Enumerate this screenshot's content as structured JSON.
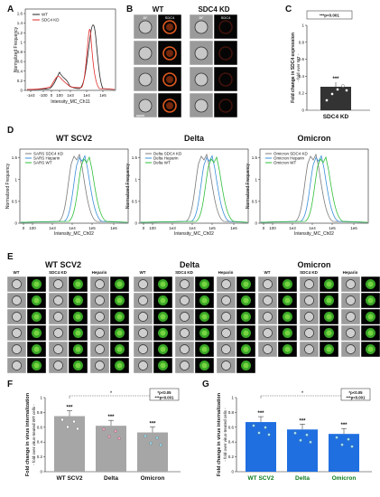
{
  "panels": {
    "A": {
      "label": "A",
      "legend": [
        "WT",
        "SDC4 KD"
      ],
      "ylabel": "Normalized Frequency",
      "xlabel": "Intensity_MC_Ch11",
      "yticks": [
        "0",
        "0.2",
        "0.4",
        "0.6",
        "0.8",
        "1",
        "1.2",
        "1.4",
        "1.6"
      ],
      "xticks": [
        "-1e3",
        "-100",
        "0",
        "100",
        "1e3",
        "1e4",
        "1e5"
      ]
    },
    "B": {
      "label": "B",
      "col1": "WT",
      "col2": "SDC4 KD",
      "sub_bf": "BF",
      "sub_sdc4": "SDC4",
      "scale": "10 μm"
    },
    "C": {
      "label": "C",
      "sig": "***p<0.001",
      "stars": "***",
      "ylabel": "Fold change in SDC4 expression",
      "ylabel2": "- fold over WT -",
      "yticks": [
        "0",
        "0.2",
        "0.4",
        "0.6",
        "0.8",
        "1"
      ],
      "category": "SDC4 KD"
    },
    "D": {
      "label": "D",
      "xlabel": "Intensity_MC_Ch02",
      "ylabel": "Normalized Frequency",
      "yticks": [
        "0",
        "0.5",
        "1",
        "1.5"
      ],
      "xticks": [
        "0",
        "100",
        "1e3",
        "1e4",
        "1e5",
        "1e6"
      ]
    },
    "E": {
      "label": "E",
      "groups": [
        {
          "title": "WT SCV2",
          "cols": [
            "WT",
            "SDC4 KD",
            "Heparin"
          ]
        },
        {
          "title": "Delta",
          "cols": [
            "WT",
            "SDC4 KD",
            "Heparin"
          ]
        },
        {
          "title": "Omicron",
          "cols": [
            "WT",
            "SDC4 KD",
            "Heparin"
          ]
        }
      ],
      "sub": [
        "BF",
        "virus"
      ]
    },
    "F": {
      "label": "F",
      "ylabel": "Fold change in virus internalization",
      "ylabel2": "- fold over virus-treated WT cells -",
      "sig1": "*p<0.05",
      "sig2": "***p<0.001",
      "bracket": "*",
      "stars": "***",
      "yticks": [
        "0",
        "0.2",
        "0.4",
        "0.6",
        "0.8",
        "1"
      ]
    },
    "G": {
      "label": "G",
      "ylabel": "Fold change in virus internalization",
      "ylabel2": "- fold over virus-treated cells -",
      "sig1": "*p<0.05",
      "sig2": "***p<0.001",
      "bracket": "*",
      "stars": "***",
      "yticks": [
        "0",
        "0.2",
        "0.4",
        "0.6",
        "0.8",
        "1"
      ]
    }
  },
  "chart_data": [
    {
      "type": "bar",
      "panel": "C",
      "categories": [
        "SDC4 KD"
      ],
      "values": [
        0.28
      ],
      "ylim": [
        0,
        1
      ],
      "color": "#333333"
    },
    {
      "type": "line",
      "panel": "D1",
      "title": "WT SCV2",
      "series": [
        {
          "name": "SARS SDC4 KD",
          "color": "#7a7a7a"
        },
        {
          "name": "SARS Heparin",
          "color": "#3a8fd9"
        },
        {
          "name": "SARS WT",
          "color": "#2fbf3a"
        }
      ],
      "peak_x": [
        "1e4",
        "2e4",
        "3e4"
      ],
      "ylim": [
        0,
        1.7
      ]
    },
    {
      "type": "line",
      "panel": "D2",
      "title": "Delta",
      "series": [
        {
          "name": "Delta SDC4 KD",
          "color": "#7a7a7a"
        },
        {
          "name": "Delta Heparin",
          "color": "#3a8fd9"
        },
        {
          "name": "Delta WT",
          "color": "#2fbf3a"
        }
      ],
      "ylim": [
        0,
        1.7
      ]
    },
    {
      "type": "line",
      "panel": "D3",
      "title": "Omicron",
      "series": [
        {
          "name": "Omicron SDC4 KD",
          "color": "#7a7a7a"
        },
        {
          "name": "Omicron Heparin",
          "color": "#3a8fd9"
        },
        {
          "name": "Omicron WT",
          "color": "#2fbf3a"
        }
      ],
      "ylim": [
        0,
        1.7
      ]
    },
    {
      "type": "bar",
      "panel": "F",
      "categories": [
        "WT SCV2",
        "Delta",
        "Omicron"
      ],
      "values": [
        0.75,
        0.62,
        0.53
      ],
      "ylim": [
        0,
        1
      ],
      "color": "#a6a6a6"
    },
    {
      "type": "bar",
      "panel": "G",
      "categories": [
        "WT SCV2",
        "Delta",
        "Omicron"
      ],
      "values": [
        0.67,
        0.57,
        0.51
      ],
      "ylim": [
        0,
        1
      ],
      "color": "#1f6fe0"
    }
  ]
}
